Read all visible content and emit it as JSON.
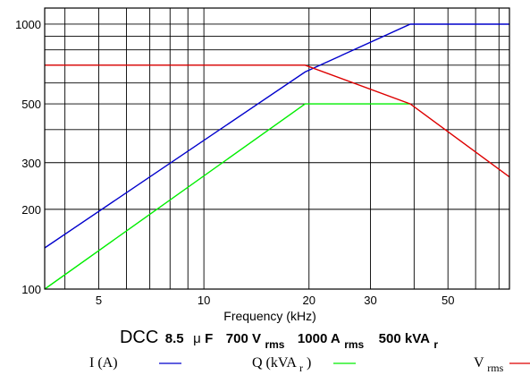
{
  "chart_data": {
    "type": "line",
    "title": {
      "prefix": "DCC",
      "capacitance": "8.5",
      "mu": "μ",
      "cap_unit": "F",
      "voltage": "700 V",
      "voltage_sub": "rms",
      "current": "1000 A",
      "current_sub": "rms",
      "power": "500 kVA",
      "power_sub": "r"
    },
    "xlabel": "Frequency (kHz)",
    "ylabel": "",
    "x_scale": "log",
    "y_scale": "log",
    "xlim": [
      3.5,
      75
    ],
    "ylim": [
      100,
      1150
    ],
    "x_tick_labels": [
      "5",
      "10",
      "20",
      "30",
      "50"
    ],
    "x_tick_values": [
      5,
      10,
      20,
      30,
      50
    ],
    "y_tick_labels": [
      "100",
      "200",
      "300",
      "500",
      "1000"
    ],
    "y_tick_values": [
      100,
      200,
      300,
      500,
      1000
    ],
    "grid": true,
    "series": [
      {
        "name": "I (A)",
        "color": "#0000cc",
        "x": [
          3.5,
          19.5,
          39,
          75
        ],
        "y": [
          143,
          660,
          1000,
          1000
        ]
      },
      {
        "name": "Q (kVA",
        "name_sub": "r",
        "name_suffix": ")",
        "color": "#00ee00",
        "x": [
          3.5,
          19.5,
          39
        ],
        "y": [
          100,
          500,
          500
        ]
      },
      {
        "name": "V",
        "name_sub": "rms",
        "color": "#dd0000",
        "x": [
          3.5,
          19.5,
          39,
          75
        ],
        "y": [
          700,
          700,
          500,
          265
        ]
      }
    ]
  }
}
